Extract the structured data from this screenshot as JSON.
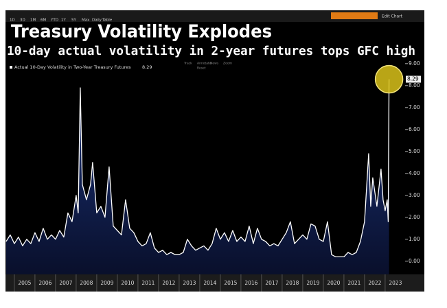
{
  "toolbar": {
    "buttons": [
      "1D",
      "3D",
      "1M",
      "6M",
      "YTD",
      "1Y",
      "5Y",
      "Max",
      "Daily",
      "Table"
    ],
    "edit": "Edit Chart",
    "controls": [
      "Track",
      "Annotate",
      "News",
      "Zoom",
      "Reset"
    ]
  },
  "chart_data": {
    "type": "line",
    "title": "Treasury Volatility Explodes",
    "subtitle": "10-day actual volatility in 2-year futures tops GFC high",
    "x": [
      2004.6,
      2004.8,
      2005.0,
      2005.2,
      2005.4,
      2005.6,
      2005.8,
      2006.0,
      2006.2,
      2006.4,
      2006.6,
      2006.8,
      2007.0,
      2007.2,
      2007.4,
      2007.6,
      2007.8,
      2008.0,
      2008.1,
      2008.2,
      2008.3,
      2008.5,
      2008.7,
      2008.8,
      2009.0,
      2009.2,
      2009.4,
      2009.6,
      2009.8,
      2010.0,
      2010.2,
      2010.4,
      2010.6,
      2010.8,
      2011.0,
      2011.2,
      2011.4,
      2011.6,
      2011.8,
      2012.0,
      2012.2,
      2012.4,
      2012.6,
      2012.8,
      2013.0,
      2013.2,
      2013.4,
      2013.6,
      2013.8,
      2014.0,
      2014.2,
      2014.4,
      2014.6,
      2014.8,
      2015.0,
      2015.2,
      2015.4,
      2015.6,
      2015.8,
      2016.0,
      2016.2,
      2016.4,
      2016.6,
      2016.8,
      2017.0,
      2017.2,
      2017.4,
      2017.6,
      2017.8,
      2018.0,
      2018.2,
      2018.4,
      2018.6,
      2018.8,
      2019.0,
      2019.2,
      2019.4,
      2019.6,
      2019.8,
      2020.0,
      2020.2,
      2020.4,
      2020.6,
      2020.8,
      2021.0,
      2021.2,
      2021.4,
      2021.6,
      2021.8,
      2022.0,
      2022.2,
      2022.3,
      2022.4,
      2022.6,
      2022.8,
      2022.9,
      2023.0,
      2023.1,
      2023.15,
      2023.19
    ],
    "series": [
      {
        "name": "Actual 10-Day Volatility in Two-Year Treasury Futures",
        "color": "#ffffff",
        "values": [
          0.9,
          1.2,
          0.8,
          1.1,
          0.7,
          1.0,
          0.8,
          1.3,
          0.9,
          1.5,
          1.0,
          1.2,
          1.0,
          1.4,
          1.1,
          2.2,
          1.8,
          3.0,
          2.2,
          7.9,
          3.5,
          2.8,
          3.5,
          4.5,
          2.2,
          2.5,
          2.0,
          4.3,
          1.6,
          1.4,
          1.2,
          2.8,
          1.5,
          1.3,
          0.9,
          0.7,
          0.8,
          1.3,
          0.6,
          0.4,
          0.5,
          0.3,
          0.4,
          0.3,
          0.3,
          0.4,
          1.0,
          0.7,
          0.5,
          0.6,
          0.7,
          0.5,
          0.8,
          1.5,
          1.0,
          1.3,
          0.9,
          1.4,
          0.9,
          1.1,
          0.9,
          1.6,
          0.8,
          1.5,
          1.0,
          0.9,
          0.7,
          0.8,
          0.7,
          1.0,
          1.3,
          1.8,
          0.8,
          1.0,
          1.2,
          1.0,
          1.7,
          1.6,
          1.0,
          0.9,
          1.8,
          0.3,
          0.2,
          0.2,
          0.2,
          0.4,
          0.3,
          0.4,
          0.9,
          1.8,
          4.9,
          2.5,
          3.8,
          2.5,
          4.2,
          2.8,
          2.3,
          2.8,
          1.8,
          8.29
        ]
      }
    ],
    "xlim": [
      2004.57,
      2023.97
    ],
    "xticks": [
      {
        "value": 2005,
        "label": "2005"
      },
      {
        "value": 2006,
        "label": "2006"
      },
      {
        "value": 2007,
        "label": "2007"
      },
      {
        "value": 2008,
        "label": "2008"
      },
      {
        "value": 2009,
        "label": "2009"
      },
      {
        "value": 2010,
        "label": "2010"
      },
      {
        "value": 2011,
        "label": "2011"
      },
      {
        "value": 2012,
        "label": "2012"
      },
      {
        "value": 2013,
        "label": "2013"
      },
      {
        "value": 2014,
        "label": "2014"
      },
      {
        "value": 2015,
        "label": "2015"
      },
      {
        "value": 2016,
        "label": "2016"
      },
      {
        "value": 2017,
        "label": "2017"
      },
      {
        "value": 2018,
        "label": "2018"
      },
      {
        "value": 2019,
        "label": "2019"
      },
      {
        "value": 2020,
        "label": "2020"
      },
      {
        "value": 2021,
        "label": "2021"
      },
      {
        "value": 2022,
        "label": "2022"
      },
      {
        "value": 2023,
        "label": "2023"
      }
    ],
    "ylim": [
      -0.6,
      9.15
    ],
    "yticks": [
      {
        "value": 0,
        "label": "0.00"
      },
      {
        "value": 1,
        "label": "1.00"
      },
      {
        "value": 2,
        "label": "2.00"
      },
      {
        "value": 3,
        "label": "3.00"
      },
      {
        "value": 4,
        "label": "4.00"
      },
      {
        "value": 5,
        "label": "5.00"
      },
      {
        "value": 6,
        "label": "6.00"
      },
      {
        "value": 7,
        "label": "7.00"
      },
      {
        "value": 8,
        "label": "8.00"
      },
      {
        "value": 9,
        "label": "9.00"
      }
    ],
    "highlight_color": "#d9c21a"
  }
}
